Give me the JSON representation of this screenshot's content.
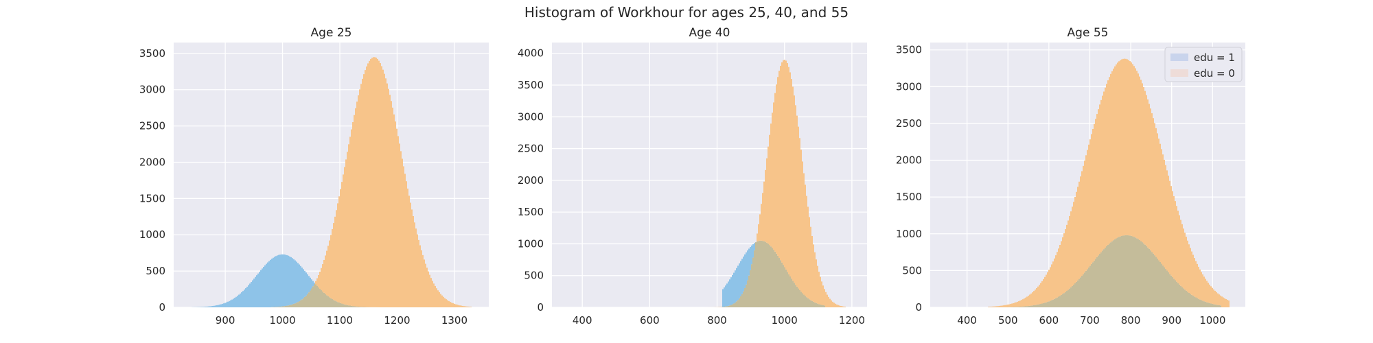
{
  "suptitle": "Histogram of Workhour for ages 25, 40, and 55",
  "colors": {
    "background": "#EAEAF2",
    "grid": "#FFFFFF",
    "edu1": "#8EC3E8",
    "edu0": "#F7C48A",
    "overlap": "#C4BC9A",
    "legend_edu1": "#C9D4EC",
    "legend_edu0": "#EEDCD8"
  },
  "chart_data": [
    {
      "type": "histogram",
      "title": "Age 25",
      "xlim": [
        810,
        1360
      ],
      "ylim": [
        0,
        3650
      ],
      "xticks": [
        900,
        1000,
        1100,
        1200,
        1300
      ],
      "yticks": [
        0,
        500,
        1000,
        1500,
        2000,
        2500,
        3000,
        3500
      ],
      "grid": true,
      "series": [
        {
          "label": "edu = 1",
          "mean": 1000,
          "sd": 45,
          "peak": 730,
          "range": [
            840,
            1170
          ]
        },
        {
          "label": "edu = 0",
          "mean": 1160,
          "sd": 48,
          "peak": 3450,
          "range": [
            980,
            1330
          ]
        }
      ]
    },
    {
      "type": "histogram",
      "title": "Age 40",
      "xlim": [
        310,
        1245
      ],
      "ylim": [
        0,
        4170
      ],
      "xticks": [
        400,
        600,
        800,
        1000,
        1200
      ],
      "yticks": [
        0,
        500,
        1000,
        1500,
        2000,
        2500,
        3000,
        3500,
        4000
      ],
      "grid": true,
      "series": [
        {
          "label": "edu = 1",
          "mean": 930,
          "sd": 70,
          "peak": 1050,
          "range": [
            815,
            1120
          ]
        },
        {
          "label": "edu = 0",
          "mean": 1000,
          "sd": 52,
          "peak": 3900,
          "range": [
            700,
            1180
          ]
        }
      ]
    },
    {
      "type": "histogram",
      "title": "Age 55",
      "xlim": [
        310,
        1080
      ],
      "ylim": [
        0,
        3600
      ],
      "xticks": [
        400,
        500,
        600,
        700,
        800,
        900,
        1000
      ],
      "yticks": [
        0,
        500,
        1000,
        1500,
        2000,
        2500,
        3000,
        3500
      ],
      "grid": true,
      "legend_position": "upper right",
      "series": [
        {
          "label": "edu = 1",
          "mean": 790,
          "sd": 85,
          "peak": 980,
          "range": [
            500,
            1020
          ]
        },
        {
          "label": "edu = 0",
          "mean": 785,
          "sd": 95,
          "peak": 3380,
          "range": [
            450,
            1040
          ]
        }
      ]
    }
  ]
}
